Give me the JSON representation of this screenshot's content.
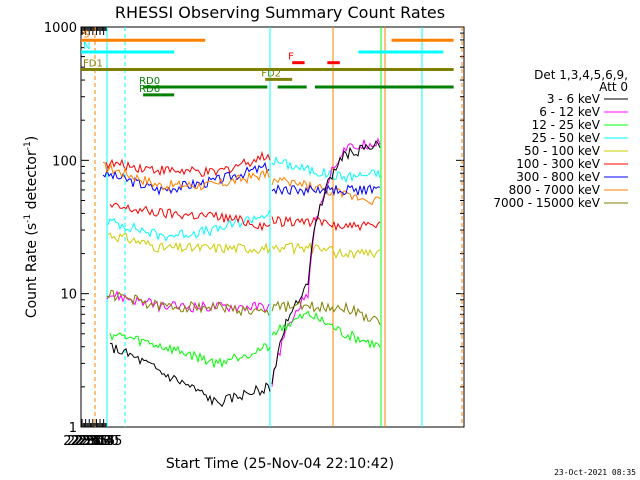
{
  "chart_data": {
    "type": "line",
    "title": "RHESSI Observing Summary Count Rates",
    "xlabel": "Start Time (25-Nov-04 22:10:42)",
    "ylabel_main": "Count Rate (s",
    "ylabel_sup1": "-1",
    "ylabel_mid": " detector",
    "ylabel_sup2": "-1",
    "ylabel_end": ")",
    "y_scale": "log",
    "ylim": [
      1,
      1000
    ],
    "xlim_minutes": [
      22.0,
      48.6
    ],
    "x_tick_labels": [
      "22:15",
      "22:30",
      "22:45",
      "23:00",
      "23:15",
      "23:30",
      "23:45"
    ],
    "y_tick_labels": [
      "1",
      "10",
      "100",
      "1000"
    ],
    "legend_header_1": "Det 1,3,4,5,6,9,",
    "legend_header_2": "Att 0",
    "footer_date": "23-Oct-2021 08:35",
    "series": [
      {
        "name": "3 - 6 keV",
        "color": "#000000"
      },
      {
        "name": "6 - 12 keV",
        "color": "#ff00ff"
      },
      {
        "name": "12 - 25 keV",
        "color": "#00ff00"
      },
      {
        "name": "25 - 50 keV",
        "color": "#00ffff"
      },
      {
        "name": "50 - 100 keV",
        "color": "#cccc00"
      },
      {
        "name": "100 - 300 keV",
        "color": "#ff0000"
      },
      {
        "name": "300 - 800 keV",
        "color": "#0000ff"
      },
      {
        "name": "800 - 7000 keV",
        "color": "#ff8000"
      },
      {
        "name": "7000 - 15000 keV",
        "color": "#808000"
      }
    ],
    "flag_bars": [
      {
        "label": "S",
        "color": "#ff8000",
        "segments": [
          [
            22.0,
            22.6
          ],
          [
            23.5,
            23.8
          ]
        ],
        "level": 795
      },
      {
        "label": "N",
        "color": "#00ffff",
        "segments": [
          [
            22.0,
            22.45
          ],
          [
            23.34,
            23.75
          ]
        ],
        "level": 650
      },
      {
        "label": "F",
        "color": "#ff0000",
        "segments": [
          [
            23.02,
            23.08
          ],
          [
            23.19,
            23.25
          ]
        ],
        "level": 540
      },
      {
        "label": "FD1",
        "color": "#808000",
        "segments": [
          [
            22.0,
            23.8
          ]
        ],
        "level": 480
      },
      {
        "label": "FD2",
        "color": "#808000",
        "segments": [
          [
            22.89,
            23.02
          ]
        ],
        "level": 405
      },
      {
        "label": "RD0",
        "color": "#008000",
        "segments": [
          [
            22.3,
            22.9
          ],
          [
            22.95,
            23.09
          ],
          [
            23.13,
            23.8
          ]
        ],
        "level": 355
      },
      {
        "label": "RD6",
        "color": "#008000",
        "segments": [
          [
            22.3,
            22.45
          ]
        ],
        "level": 310
      }
    ]
  }
}
